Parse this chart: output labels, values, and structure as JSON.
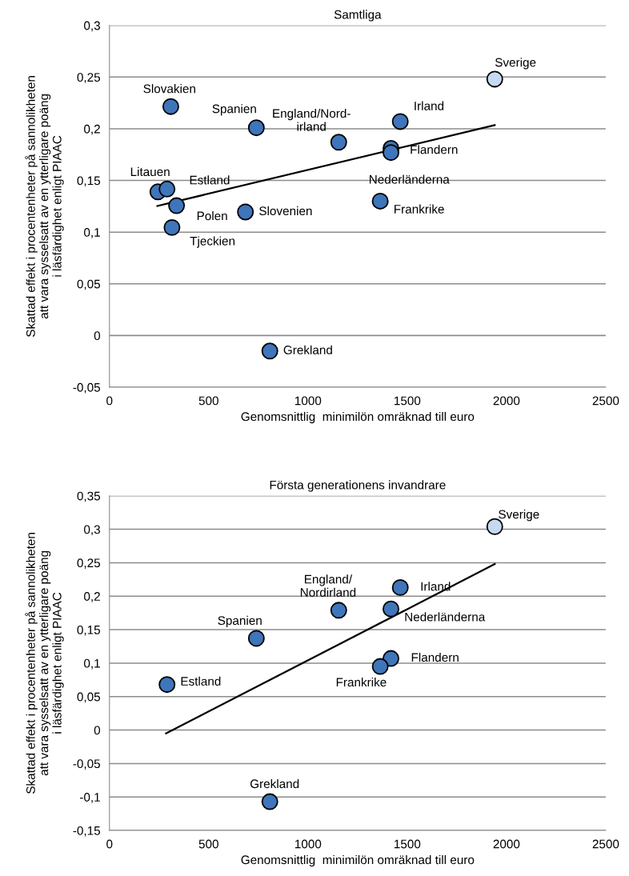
{
  "chart_data": [
    {
      "type": "scatter",
      "title": "Samtliga",
      "xlabel": "Genomsnittlig  minimilön omräknad till euro",
      "ylabel": "Skattad effekt i procentenheter på sannolikheten\natt vara sysselsatt av en ytterligare poäng\ni läsfärdighet enligt PIAAC",
      "xlim": [
        0,
        2500
      ],
      "xticks": [
        0,
        500,
        1000,
        1500,
        2000,
        2500
      ],
      "ylim": [
        -0.05,
        0.3
      ],
      "yticks": [
        {
          "value": -0.05,
          "label": "-0,05"
        },
        {
          "value": 0,
          "label": "0"
        },
        {
          "value": 0.05,
          "label": "0,05"
        },
        {
          "value": 0.1,
          "label": "0,1"
        },
        {
          "value": 0.15,
          "label": "0,15"
        },
        {
          "value": 0.2,
          "label": "0,2"
        },
        {
          "value": 0.25,
          "label": "0,25"
        },
        {
          "value": 0.3,
          "label": "0,3"
        }
      ],
      "grid": "y",
      "legend": false,
      "series": [
        {
          "marker": "circle",
          "x": [
            1941,
            309,
            740,
            1155,
            1465,
            1418,
            1418,
            1364,
            244,
            290,
            338,
            685,
            315,
            808
          ],
          "values": [
            0.248,
            0.2215,
            0.201,
            0.187,
            0.207,
            0.181,
            0.177,
            0.13,
            0.139,
            0.1417,
            0.1256,
            0.1195,
            0.1045,
            -0.015
          ],
          "colors": [
            "#c6d9f0",
            "#3f75ba",
            "#3f75ba",
            "#3f75ba",
            "#3f75ba",
            "#3f75ba",
            "#3f75ba",
            "#3f75ba",
            "#3f75ba",
            "#3f75ba",
            "#3f75ba",
            "#3f75ba",
            "#3f75ba",
            "#3f75ba"
          ]
        },
        {
          "type": "line",
          "marker": "none",
          "line_style": "solid",
          "color": "#000000",
          "x": [
            241,
            1941
          ],
          "values": [
            0.1253,
            0.2035
          ]
        }
      ],
      "annotations": [
        {
          "text": "Sverige",
          "x": 1941,
          "y": 0.248
        },
        {
          "text": "Slovakien",
          "x": 309,
          "y": 0.2215
        },
        {
          "text": "Spanien",
          "x": 740,
          "y": 0.201
        },
        {
          "text": "England/Nord-\nirland",
          "x": 1155,
          "y": 0.187
        },
        {
          "text": "Irland",
          "x": 1465,
          "y": 0.207
        },
        {
          "text": "Flandern",
          "x": 1418,
          "y": 0.181
        },
        {
          "text": "Nederländerna",
          "x": 1418,
          "y": 0.177
        },
        {
          "text": "Frankrike",
          "x": 1364,
          "y": 0.13
        },
        {
          "text": "Litauen",
          "x": 244,
          "y": 0.139
        },
        {
          "text": "Estland",
          "x": 290,
          "y": 0.1417
        },
        {
          "text": "Polen",
          "x": 338,
          "y": 0.1256
        },
        {
          "text": "Slovenien",
          "x": 685,
          "y": 0.1195
        },
        {
          "text": "Tjeckien",
          "x": 315,
          "y": 0.1045
        },
        {
          "text": "Grekland",
          "x": 808,
          "y": -0.015
        }
      ]
    },
    {
      "type": "scatter",
      "title": "Första generationens invandrare",
      "xlabel": "Genomsnittlig  minimilön omräknad till euro",
      "ylabel": "Skattad effekt i procentenheter på sannolikheten\natt vara sysselsatt av en ytterligare poäng\ni läsfärdighet enligt PIAAC",
      "xlim": [
        0,
        2500
      ],
      "xticks": [
        0,
        500,
        1000,
        1500,
        2000,
        2500
      ],
      "ylim": [
        -0.15,
        0.35
      ],
      "yticks": [
        {
          "value": -0.15,
          "label": "-0,15"
        },
        {
          "value": -0.1,
          "label": "-0,1"
        },
        {
          "value": -0.05,
          "label": "-0,05"
        },
        {
          "value": 0,
          "label": "0"
        },
        {
          "value": 0.05,
          "label": "0,05"
        },
        {
          "value": 0.1,
          "label": "0,1"
        },
        {
          "value": 0.15,
          "label": "0,15"
        },
        {
          "value": 0.2,
          "label": "0,2"
        },
        {
          "value": 0.25,
          "label": "0,25"
        },
        {
          "value": 0.3,
          "label": "0,3"
        },
        {
          "value": 0.35,
          "label": "0,35"
        }
      ],
      "grid": "y",
      "legend": false,
      "series": [
        {
          "marker": "circle",
          "x": [
            1941,
            1465,
            1155,
            1418,
            740,
            1418,
            1364,
            290,
            808
          ],
          "values": [
            0.304,
            0.213,
            0.179,
            0.181,
            0.137,
            0.107,
            0.095,
            0.068,
            -0.107
          ],
          "colors": [
            "#c6d9f0",
            "#3f75ba",
            "#3f75ba",
            "#3f75ba",
            "#3f75ba",
            "#3f75ba",
            "#3f75ba",
            "#3f75ba",
            "#3f75ba"
          ]
        },
        {
          "type": "line",
          "marker": "none",
          "line_style": "solid",
          "color": "#000000",
          "x": [
            285,
            1941
          ],
          "values": [
            -0.005,
            0.248
          ]
        }
      ],
      "annotations": [
        {
          "text": "Sverige",
          "x": 1941,
          "y": 0.304
        },
        {
          "text": "Irland",
          "x": 1465,
          "y": 0.213
        },
        {
          "text": "England/\nNordirland",
          "x": 1155,
          "y": 0.179
        },
        {
          "text": "Nederländerna",
          "x": 1418,
          "y": 0.181
        },
        {
          "text": "Spanien",
          "x": 740,
          "y": 0.137
        },
        {
          "text": "Flandern",
          "x": 1418,
          "y": 0.107
        },
        {
          "text": "Frankrike",
          "x": 1364,
          "y": 0.095
        },
        {
          "text": "Estland",
          "x": 290,
          "y": 0.068
        },
        {
          "text": "Grekland",
          "x": 808,
          "y": -0.107
        }
      ]
    }
  ]
}
